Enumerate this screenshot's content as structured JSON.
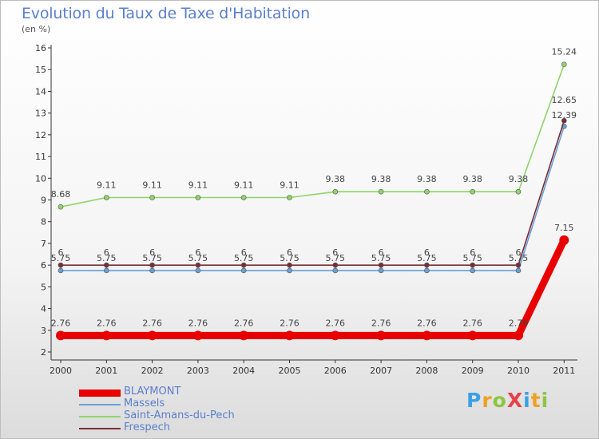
{
  "chart_data": {
    "type": "line",
    "title": "Evolution du Taux de Taxe d'Habitation",
    "subtitle": "(en %)",
    "categories": [
      "2000",
      "2001",
      "2002",
      "2003",
      "2004",
      "2005",
      "2006",
      "2007",
      "2008",
      "2009",
      "2010",
      "2011"
    ],
    "ylim": [
      2,
      16
    ],
    "yticks": [
      2,
      3,
      4,
      5,
      6,
      7,
      8,
      9,
      10,
      11,
      12,
      13,
      14,
      15,
      16
    ],
    "grid": false,
    "legend_position": "bottom-left",
    "series": [
      {
        "name": "BLAYMONT",
        "color": "#e80000",
        "values": [
          2.76,
          2.76,
          2.76,
          2.76,
          2.76,
          2.76,
          2.76,
          2.76,
          2.76,
          2.76,
          2.76,
          7.15
        ],
        "labels": [
          "2.76",
          "2.76",
          "2.76",
          "2.76",
          "2.76",
          "2.76",
          "2.76",
          "2.76",
          "2.76",
          "2.76",
          "2.76",
          "7.15"
        ]
      },
      {
        "name": "Massels",
        "color": "#6a9ed6",
        "values": [
          5.75,
          5.75,
          5.75,
          5.75,
          5.75,
          5.75,
          5.75,
          5.75,
          5.75,
          5.75,
          5.75,
          12.39
        ],
        "labels": [
          "5.75",
          "5.75",
          "5.75",
          "5.75",
          "5.75",
          "5.75",
          "5.75",
          "5.75",
          "5.75",
          "5.75",
          "5.75",
          "12.39"
        ]
      },
      {
        "name": "Saint-Amans-du-Pech",
        "color": "#8fd46a",
        "values": [
          8.68,
          9.11,
          9.11,
          9.11,
          9.11,
          9.11,
          9.38,
          9.38,
          9.38,
          9.38,
          9.38,
          15.24
        ],
        "labels": [
          "8.68",
          "9.11",
          "9.11",
          "9.11",
          "9.11",
          "9.11",
          "9.38",
          "9.38",
          "9.38",
          "9.38",
          "9.38",
          "15.24"
        ]
      },
      {
        "name": "Frespech",
        "color": "#7a2d35",
        "values": [
          6,
          6,
          6,
          6,
          6,
          6,
          6,
          6,
          6,
          6,
          6,
          12.65
        ],
        "labels": [
          "6",
          "6",
          "6",
          "6",
          "6",
          "6",
          "6",
          "6",
          "6",
          "6",
          "6",
          "12.65"
        ]
      }
    ]
  },
  "logo": {
    "text": "ProXiti",
    "letters": [
      "P",
      "r",
      "o",
      "X",
      "i",
      "t",
      "i"
    ],
    "colors": [
      "#3aa0e8",
      "#f0a020",
      "#8cc63f",
      "#e8404a",
      "#3aa0e8",
      "#f0a020",
      "#8cc63f"
    ]
  }
}
